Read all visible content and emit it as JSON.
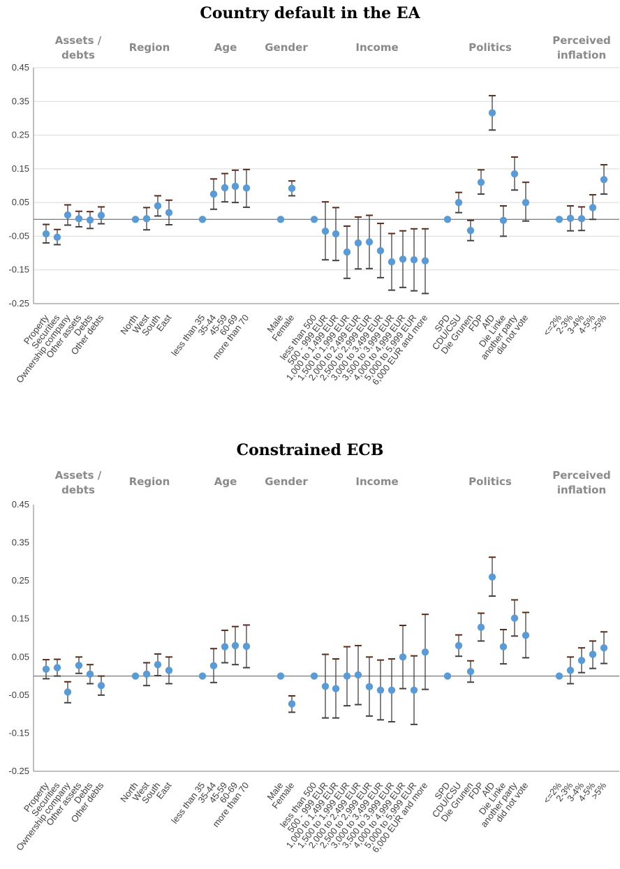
{
  "chart_data": [
    {
      "type": "scatter",
      "title": "Country default in the EA",
      "ylim": [
        -0.25,
        0.45
      ],
      "yticks": [
        "0.45",
        "0.35",
        "0.25",
        "0.15",
        "0.05",
        "-0.05",
        "-0.15",
        "-0.25"
      ],
      "grid": true,
      "groups": [
        {
          "label": "Assets / debts",
          "categories": [
            "Property",
            "Securities",
            "Ownership company",
            "Other assets",
            "Debts",
            "Other debts"
          ]
        },
        {
          "label": "Region",
          "categories": [
            "North",
            "West",
            "South",
            "East"
          ]
        },
        {
          "label": "Age",
          "categories": [
            "less than 35",
            "35-44",
            "45-59",
            "60-69",
            "more than 70"
          ]
        },
        {
          "label": "Gender",
          "categories": [
            "Male",
            "Female"
          ]
        },
        {
          "label": "Income",
          "categories": [
            "less than 500",
            "500 - 999 EUR",
            "1,000 to 1,499 EUR",
            "1,500 to 1,999 EUR",
            "2,000 to 2,499 EUR",
            "2,500 to 2,999 EUR",
            "3,000 to 3,499 EUR",
            "3,500 to 3,999 EUR",
            "4,000 to 4,999 EUR",
            "5,000 to 5,999 EUR",
            "6,000 EUR and more"
          ]
        },
        {
          "label": "Politics",
          "categories": [
            "SPD",
            "CDU/CSU",
            "Die Grunen",
            "FDP",
            "AfD",
            "Die Linke",
            "another party",
            "did not vote"
          ]
        },
        {
          "label": "Perceived inflation",
          "categories": [
            "<=2%",
            "2-3%",
            "3-4%",
            "4-5%",
            ">5%"
          ]
        }
      ],
      "series": [
        {
          "values": [
            [
              -0.043,
              -0.07,
              -0.015
            ],
            [
              -0.053,
              -0.075,
              -0.03
            ],
            [
              0.013,
              -0.017,
              0.043
            ],
            [
              0.002,
              -0.022,
              0.024
            ],
            [
              -0.002,
              -0.027,
              0.023
            ],
            [
              0.012,
              -0.013,
              0.037
            ]
          ]
        },
        {
          "values": [
            [
              0,
              0,
              0
            ],
            [
              0.002,
              -0.031,
              0.035
            ],
            [
              0.04,
              0.01,
              0.07
            ],
            [
              0.02,
              -0.016,
              0.057
            ]
          ]
        },
        {
          "values": [
            [
              0,
              0,
              0
            ],
            [
              0.075,
              0.03,
              0.12
            ],
            [
              0.094,
              0.052,
              0.136
            ],
            [
              0.098,
              0.05,
              0.146
            ],
            [
              0.093,
              0.036,
              0.148
            ]
          ]
        },
        {
          "values": [
            [
              0,
              0,
              0
            ],
            [
              0.092,
              0.07,
              0.114
            ]
          ]
        },
        {
          "values": [
            [
              0,
              0,
              0
            ],
            [
              -0.035,
              -0.12,
              0.052
            ],
            [
              -0.043,
              -0.122,
              0.035
            ],
            [
              -0.097,
              -0.175,
              -0.02
            ],
            [
              -0.07,
              -0.147,
              0.007
            ],
            [
              -0.067,
              -0.146,
              0.012
            ],
            [
              -0.093,
              -0.173,
              -0.012
            ],
            [
              -0.126,
              -0.21,
              -0.042
            ],
            [
              -0.118,
              -0.202,
              -0.034
            ],
            [
              -0.12,
              -0.212,
              -0.028
            ],
            [
              -0.123,
              -0.22,
              -0.028
            ]
          ]
        },
        {
          "values": [
            [
              0,
              0,
              0
            ],
            [
              0.05,
              0.02,
              0.08
            ],
            [
              -0.033,
              -0.063,
              -0.003
            ],
            [
              0.11,
              0.075,
              0.147
            ],
            [
              0.316,
              0.265,
              0.367
            ],
            [
              -0.003,
              -0.05,
              0.04
            ],
            [
              0.135,
              0.087,
              0.185
            ],
            [
              0.05,
              -0.005,
              0.11
            ]
          ]
        },
        {
          "values": [
            [
              0,
              0,
              0
            ],
            [
              0.003,
              -0.034,
              0.04
            ],
            [
              0.002,
              -0.033,
              0.037
            ],
            [
              0.035,
              0.0,
              0.073
            ],
            [
              0.118,
              0.075,
              0.162
            ]
          ]
        }
      ]
    },
    {
      "type": "scatter",
      "title": "Constrained ECB",
      "ylim": [
        -0.25,
        0.45
      ],
      "yticks": [
        "0.45",
        "0.35",
        "0.25",
        "0.15",
        "0.05",
        "-0.05",
        "-0.15",
        "-0.25"
      ],
      "grid": false,
      "groups": [
        {
          "label": "Assets / debts",
          "categories": [
            "Property",
            "Securities",
            "Ownership company",
            "Other assets",
            "Debts",
            "Other debts"
          ]
        },
        {
          "label": "Region",
          "categories": [
            "North",
            "West",
            "South",
            "East"
          ]
        },
        {
          "label": "Age",
          "categories": [
            "less than 35",
            "35-44",
            "45-59",
            "60-69",
            "more than 70"
          ]
        },
        {
          "label": "Gender",
          "categories": [
            "Male",
            "Female"
          ]
        },
        {
          "label": "Income",
          "categories": [
            "less than 500",
            "500 - 999 EUR",
            "1,000 to 1,499 EUR",
            "1,500 to 1,999 EUR",
            "2,000 to 2,499 EUR",
            "2,500 to 2,999 EUR",
            "3,000 to 3,499 EUR",
            "3,500 to 3,999 EUR",
            "4,000 to 4,999 EUR",
            "5,000 to 5,999 EUR",
            "6,000 EUR and more"
          ]
        },
        {
          "label": "Politics",
          "categories": [
            "SPD",
            "CDU/CSU",
            "Die Grunen",
            "FDP",
            "AfD",
            "Die Linke",
            "another party",
            "did not vote"
          ]
        },
        {
          "label": "Perceived inflation",
          "categories": [
            "<=2%",
            "2-3%",
            "3-4%",
            "4-5%",
            ">5%"
          ]
        }
      ],
      "series": [
        {
          "values": [
            [
              0.018,
              -0.007,
              0.043
            ],
            [
              0.022,
              0.0,
              0.044
            ],
            [
              -0.042,
              -0.07,
              -0.015
            ],
            [
              0.028,
              0.007,
              0.05
            ],
            [
              0.005,
              -0.02,
              0.03
            ],
            [
              -0.025,
              -0.05,
              0.0
            ]
          ]
        },
        {
          "values": [
            [
              0,
              0,
              0
            ],
            [
              0.005,
              -0.025,
              0.035
            ],
            [
              0.03,
              0.001,
              0.058
            ],
            [
              0.015,
              -0.02,
              0.05
            ]
          ]
        },
        {
          "values": [
            [
              0,
              0,
              0
            ],
            [
              0.027,
              -0.017,
              0.072
            ],
            [
              0.077,
              0.035,
              0.12
            ],
            [
              0.08,
              0.03,
              0.13
            ],
            [
              0.078,
              0.022,
              0.134
            ]
          ]
        },
        {
          "values": [
            [
              0,
              0,
              0
            ],
            [
              -0.073,
              -0.095,
              -0.052
            ]
          ]
        },
        {
          "values": [
            [
              0,
              0,
              0
            ],
            [
              -0.027,
              -0.11,
              0.057
            ],
            [
              -0.033,
              -0.11,
              0.045
            ],
            [
              0.0,
              -0.078,
              0.077
            ],
            [
              0.003,
              -0.075,
              0.08
            ],
            [
              -0.028,
              -0.105,
              0.05
            ],
            [
              -0.037,
              -0.115,
              0.042
            ],
            [
              -0.037,
              -0.12,
              0.045
            ],
            [
              0.05,
              -0.033,
              0.133
            ],
            [
              -0.037,
              -0.127,
              0.053
            ],
            [
              0.063,
              -0.035,
              0.162
            ]
          ]
        },
        {
          "values": [
            [
              0,
              0,
              0
            ],
            [
              0.08,
              0.052,
              0.108
            ],
            [
              0.012,
              -0.016,
              0.04
            ],
            [
              0.128,
              0.092,
              0.165
            ],
            [
              0.26,
              0.21,
              0.312
            ],
            [
              0.077,
              0.032,
              0.122
            ],
            [
              0.152,
              0.105,
              0.2
            ],
            [
              0.107,
              0.048,
              0.167
            ]
          ]
        },
        {
          "values": [
            [
              0,
              0,
              0
            ],
            [
              0.015,
              -0.02,
              0.05
            ],
            [
              0.041,
              0.009,
              0.074
            ],
            [
              0.057,
              0.02,
              0.092
            ],
            [
              0.074,
              0.033,
              0.116
            ]
          ]
        }
      ]
    }
  ]
}
